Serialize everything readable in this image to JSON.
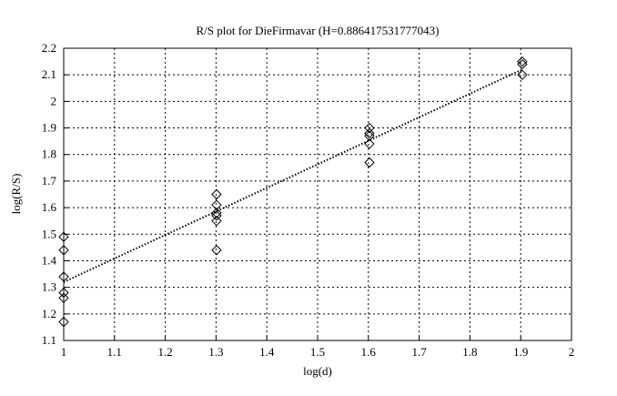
{
  "chart_data": {
    "type": "scatter",
    "title": "R/S plot for DieFirmavar (H=0.886417531777043)",
    "xlabel": "log(d)",
    "ylabel": "log(R/S)",
    "xlim": [
      1,
      2
    ],
    "ylim": [
      1.1,
      2.2
    ],
    "xticks": [
      "1",
      "1.1",
      "1.2",
      "1.3",
      "1.4",
      "1.5",
      "1.6",
      "1.7",
      "1.8",
      "1.9",
      "2"
    ],
    "yticks": [
      "1.1",
      "1.2",
      "1.3",
      "1.4",
      "1.5",
      "1.6",
      "1.7",
      "1.8",
      "1.9",
      "2",
      "2.1",
      "2.2"
    ],
    "grid": true,
    "marker": "diamond",
    "points": [
      [
        1.0,
        1.49
      ],
      [
        1.0,
        1.44
      ],
      [
        1.0,
        1.34
      ],
      [
        1.0,
        1.28
      ],
      [
        1.0,
        1.26
      ],
      [
        1.0,
        1.17
      ],
      [
        1.301,
        1.65
      ],
      [
        1.301,
        1.61
      ],
      [
        1.301,
        1.58
      ],
      [
        1.301,
        1.57
      ],
      [
        1.301,
        1.55
      ],
      [
        1.301,
        1.44
      ],
      [
        1.602,
        1.9
      ],
      [
        1.602,
        1.88
      ],
      [
        1.602,
        1.87
      ],
      [
        1.602,
        1.84
      ],
      [
        1.602,
        1.77
      ],
      [
        1.903,
        2.15
      ],
      [
        1.903,
        2.14
      ],
      [
        1.903,
        2.1
      ]
    ],
    "fit_line": {
      "x": [
        1.0,
        1.903
      ],
      "y": [
        1.32,
        2.12
      ],
      "style": "dotted"
    }
  }
}
